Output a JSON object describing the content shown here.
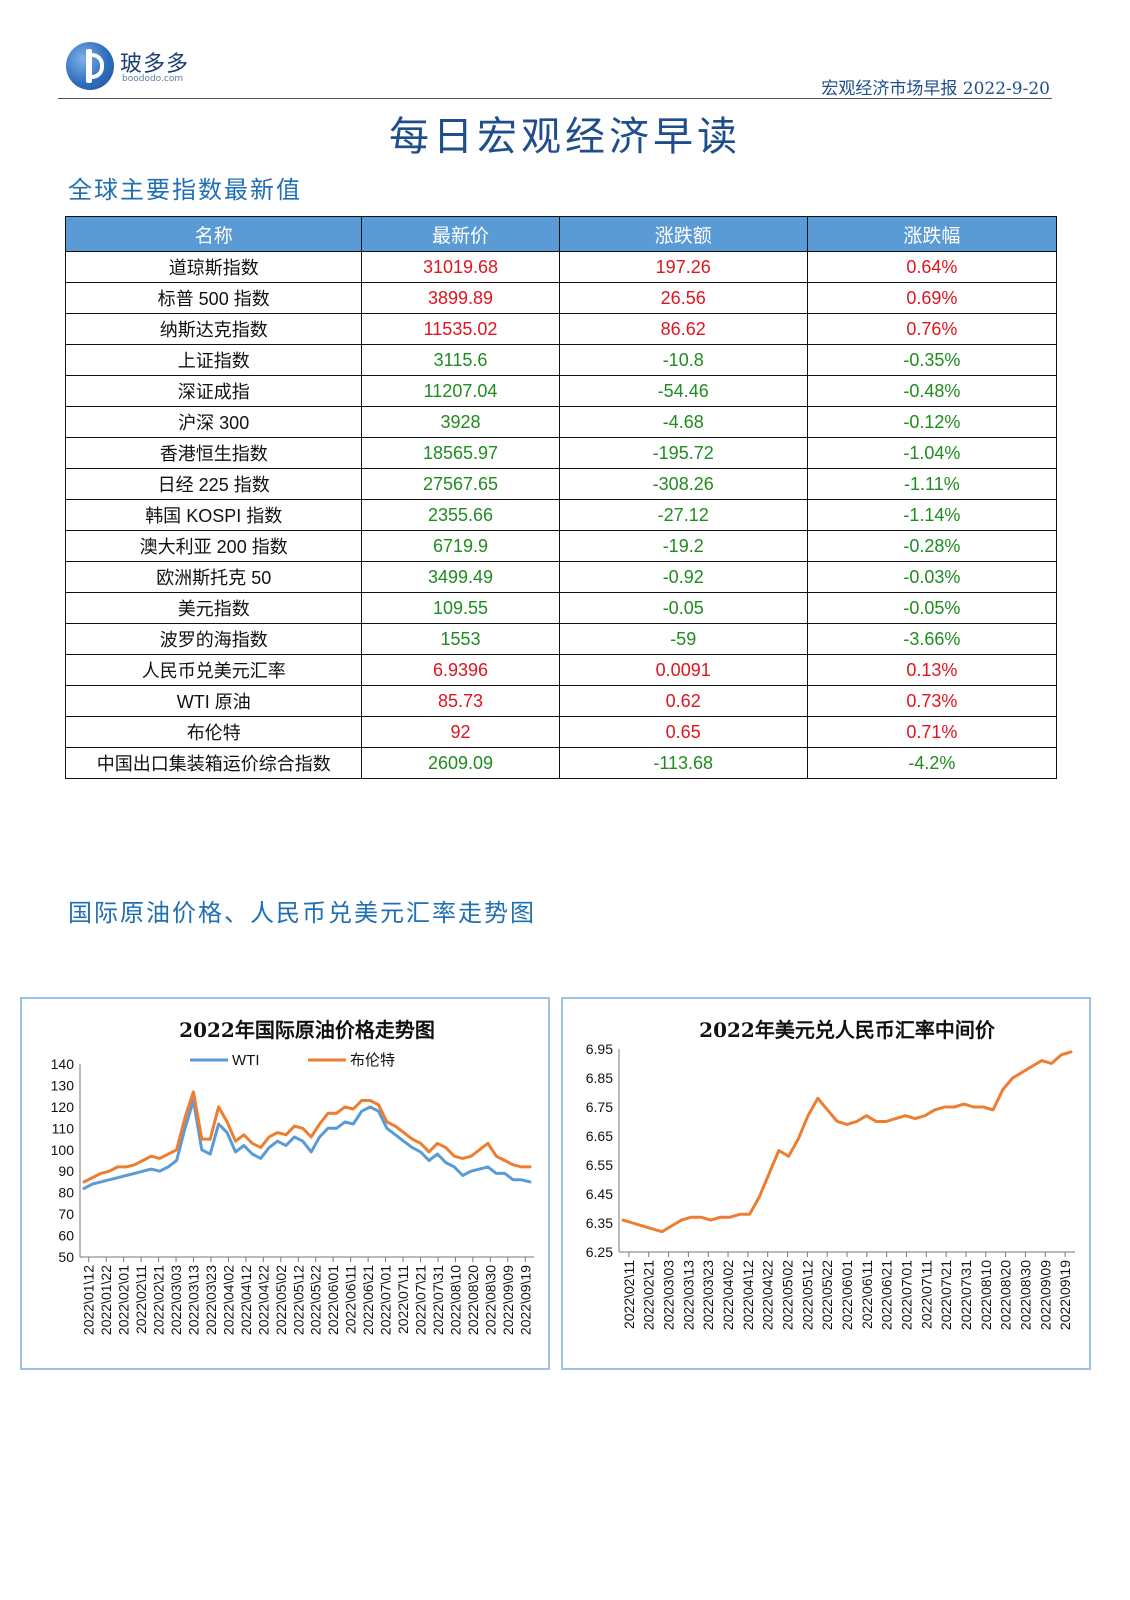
{
  "header": {
    "logo_cn": "玻多多",
    "logo_en": "boododo.com",
    "report": "宏观经济市场早报 2022-9-20",
    "title": "每日宏观经济早读"
  },
  "section1": {
    "title": "全球主要指数最新值"
  },
  "table": {
    "columns": [
      "名称",
      "最新价",
      "涨跌额",
      "涨跌幅"
    ],
    "rows": [
      {
        "name": "道琼斯指数",
        "price": "31019.68",
        "change": "197.26",
        "pct": "0.64%",
        "dir": "up"
      },
      {
        "name": "标普 500 指数",
        "price": "3899.89",
        "change": "26.56",
        "pct": "0.69%",
        "dir": "up"
      },
      {
        "name": "纳斯达克指数",
        "price": "11535.02",
        "change": "86.62",
        "pct": "0.76%",
        "dir": "up"
      },
      {
        "name": "上证指数",
        "price": "3115.6",
        "change": "-10.8",
        "pct": "-0.35%",
        "dir": "down"
      },
      {
        "name": "深证成指",
        "price": "11207.04",
        "change": "-54.46",
        "pct": "-0.48%",
        "dir": "down"
      },
      {
        "name": "沪深 300",
        "price": "3928",
        "change": "-4.68",
        "pct": "-0.12%",
        "dir": "down"
      },
      {
        "name": "香港恒生指数",
        "price": "18565.97",
        "change": "-195.72",
        "pct": "-1.04%",
        "dir": "down"
      },
      {
        "name": "日经 225 指数",
        "price": "27567.65",
        "change": "-308.26",
        "pct": "-1.11%",
        "dir": "down"
      },
      {
        "name": "韩国 KOSPI 指数",
        "price": "2355.66",
        "change": "-27.12",
        "pct": "-1.14%",
        "dir": "down"
      },
      {
        "name": "澳大利亚 200 指数",
        "price": "6719.9",
        "change": "-19.2",
        "pct": "-0.28%",
        "dir": "down"
      },
      {
        "name": "欧洲斯托克 50",
        "price": "3499.49",
        "change": "-0.92",
        "pct": "-0.03%",
        "dir": "down"
      },
      {
        "name": "美元指数",
        "price": "109.55",
        "change": "-0.05",
        "pct": "-0.05%",
        "dir": "down"
      },
      {
        "name": "波罗的海指数",
        "price": "1553",
        "change": "-59",
        "pct": "-3.66%",
        "dir": "down"
      },
      {
        "name": "人民币兑美元汇率",
        "price": "6.9396",
        "change": "0.0091",
        "pct": "0.13%",
        "dir": "up"
      },
      {
        "name": "WTI 原油",
        "price": "85.73",
        "change": "0.62",
        "pct": "0.73%",
        "dir": "up"
      },
      {
        "name": "布伦特",
        "price": "92",
        "change": "0.65",
        "pct": "0.71%",
        "dir": "up"
      },
      {
        "name": "中国出口集装箱运价综合指数",
        "price": "2609.09",
        "change": "-113.68",
        "pct": "-4.2%",
        "dir": "down"
      }
    ]
  },
  "section2": {
    "title": "国际原油价格、人民币兑美元汇率走势图"
  },
  "colors": {
    "wti": "#5b9bd5",
    "brent": "#ed7d31",
    "up": "#e0141e",
    "down": "#1e8c1e",
    "header_bg": "#5b9bd5",
    "title": "#1f4e8c"
  },
  "chart_data": [
    {
      "type": "line",
      "title": "2022年国际原油价格走势图",
      "xlabel": "",
      "ylabel": "",
      "ylim": [
        50,
        140
      ],
      "yticks": [
        50,
        60,
        70,
        80,
        90,
        100,
        110,
        120,
        130,
        140
      ],
      "x_tick_labels": [
        "2022\\01\\12",
        "2022\\01\\22",
        "2022\\02\\01",
        "2022\\02\\11",
        "2022\\02\\21",
        "2022\\03\\03",
        "2022\\03\\13",
        "2022\\03\\23",
        "2022\\04\\02",
        "2022\\04\\12",
        "2022\\04\\22",
        "2022\\05\\02",
        "2022\\05\\12",
        "2022\\05\\22",
        "2022\\06\\01",
        "2022\\06\\11",
        "2022\\06\\21",
        "2022\\07\\01",
        "2022\\07\\11",
        "2022\\07\\21",
        "2022\\07\\31",
        "2022\\08\\10",
        "2022\\08\\20",
        "2022\\08\\30",
        "2022\\09\\09",
        "2022\\09\\19"
      ],
      "legend": "top",
      "series": [
        {
          "name": "WTI",
          "values": [
            82,
            84,
            85,
            86,
            87,
            88,
            89,
            90,
            91,
            90,
            92,
            95,
            110,
            123,
            100,
            98,
            112,
            108,
            99,
            102,
            98,
            96,
            101,
            104,
            102,
            106,
            104,
            99,
            106,
            110,
            110,
            113,
            112,
            118,
            120,
            118,
            110,
            107,
            104,
            101,
            99,
            95,
            98,
            94,
            92,
            88,
            90,
            91,
            92,
            89,
            89,
            86,
            86,
            85
          ]
        },
        {
          "name": "布伦特",
          "values": [
            85,
            87,
            89,
            90,
            92,
            92,
            93,
            95,
            97,
            96,
            98,
            100,
            115,
            127,
            105,
            105,
            120,
            113,
            104,
            107,
            103,
            101,
            106,
            108,
            107,
            111,
            110,
            106,
            112,
            117,
            117,
            120,
            119,
            123,
            123,
            121,
            113,
            111,
            108,
            105,
            103,
            99,
            103,
            101,
            97,
            96,
            97,
            100,
            103,
            97,
            95,
            93,
            92,
            92
          ]
        }
      ]
    },
    {
      "type": "line",
      "title": "2022年美元兑人民币汇率中间价",
      "xlabel": "",
      "ylabel": "",
      "ylim": [
        6.25,
        6.95
      ],
      "yticks": [
        6.25,
        6.35,
        6.45,
        6.55,
        6.65,
        6.75,
        6.85,
        6.95
      ],
      "x_tick_labels": [
        "2022\\02\\11",
        "2022\\02\\21",
        "2022\\03\\03",
        "2022\\03\\13",
        "2022\\03\\23",
        "2022\\04\\02",
        "2022\\04\\12",
        "2022\\04\\22",
        "2022\\05\\02",
        "2022\\05\\12",
        "2022\\05\\22",
        "2022\\06\\01",
        "2022\\06\\11",
        "2022\\06\\21",
        "2022\\07\\01",
        "2022\\07\\11",
        "2022\\07\\21",
        "2022\\07\\31",
        "2022\\08\\10",
        "2022\\08\\20",
        "2022\\08\\30",
        "2022\\09\\09",
        "2022\\09\\19"
      ],
      "legend": "none",
      "series": [
        {
          "name": "",
          "values": [
            6.36,
            6.35,
            6.34,
            6.33,
            6.32,
            6.34,
            6.36,
            6.37,
            6.37,
            6.36,
            6.37,
            6.37,
            6.38,
            6.38,
            6.44,
            6.52,
            6.6,
            6.58,
            6.64,
            6.72,
            6.78,
            6.74,
            6.7,
            6.69,
            6.7,
            6.72,
            6.7,
            6.7,
            6.71,
            6.72,
            6.71,
            6.72,
            6.74,
            6.75,
            6.75,
            6.76,
            6.75,
            6.75,
            6.74,
            6.81,
            6.85,
            6.87,
            6.89,
            6.91,
            6.9,
            6.93,
            6.94
          ]
        }
      ]
    }
  ]
}
